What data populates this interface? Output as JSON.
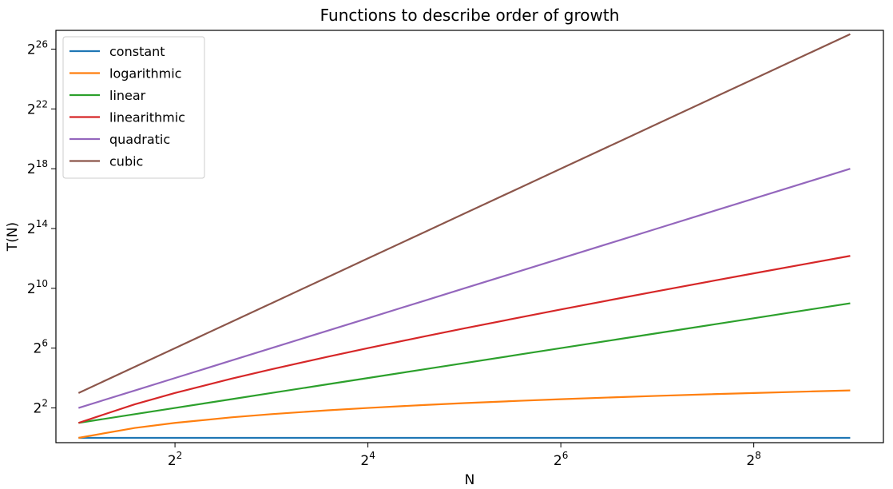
{
  "chart_data": {
    "type": "line",
    "title": "Functions to describe order of growth",
    "xlabel": "N",
    "ylabel": "T(N)",
    "xscale": "log2",
    "yscale": "log2",
    "xlim": [
      1.7,
      650
    ],
    "ylim": [
      0.8,
      160000000
    ],
    "grid": false,
    "legend_position": "top-left",
    "x_ticks": [
      {
        "base": "2",
        "exp": "2",
        "value": 4
      },
      {
        "base": "2",
        "exp": "4",
        "value": 16
      },
      {
        "base": "2",
        "exp": "6",
        "value": 64
      },
      {
        "base": "2",
        "exp": "8",
        "value": 256
      }
    ],
    "y_ticks": [
      {
        "base": "2",
        "exp": "2",
        "value": 4
      },
      {
        "base": "2",
        "exp": "6",
        "value": 64
      },
      {
        "base": "2",
        "exp": "10",
        "value": 1024
      },
      {
        "base": "2",
        "exp": "14",
        "value": 16384
      },
      {
        "base": "2",
        "exp": "18",
        "value": 262144
      },
      {
        "base": "2",
        "exp": "22",
        "value": 4194304
      },
      {
        "base": "2",
        "exp": "26",
        "value": 67108864
      }
    ],
    "x": [
      2,
      3,
      4,
      6,
      8,
      12,
      16,
      24,
      32,
      48,
      64,
      96,
      128,
      192,
      256,
      384,
      512
    ],
    "series": [
      {
        "name": "constant",
        "color": "#1f77b4",
        "values": [
          1,
          1,
          1,
          1,
          1,
          1,
          1,
          1,
          1,
          1,
          1,
          1,
          1,
          1,
          1,
          1,
          1
        ]
      },
      {
        "name": "logarithmic",
        "color": "#ff7f0e",
        "values": [
          1,
          1.585,
          2,
          2.585,
          3,
          3.585,
          4,
          4.585,
          5,
          5.585,
          6,
          6.585,
          7,
          7.585,
          8,
          8.585,
          9
        ]
      },
      {
        "name": "linear",
        "color": "#2ca02c",
        "values": [
          2,
          3,
          4,
          6,
          8,
          12,
          16,
          24,
          32,
          48,
          64,
          96,
          128,
          192,
          256,
          384,
          512
        ]
      },
      {
        "name": "linearithmic",
        "color": "#d62728",
        "values": [
          2,
          4.75,
          8,
          15.5,
          24,
          43,
          64,
          110,
          160,
          268,
          384,
          632,
          896,
          1456,
          2048,
          3297,
          4608
        ]
      },
      {
        "name": "quadratic",
        "color": "#9467bd",
        "values": [
          4,
          9,
          16,
          36,
          64,
          144,
          256,
          576,
          1024,
          2304,
          4096,
          9216,
          16384,
          36864,
          65536,
          147456,
          262144
        ]
      },
      {
        "name": "cubic",
        "color": "#8c564b",
        "values": [
          8,
          27,
          64,
          216,
          512,
          1728,
          4096,
          13824,
          32768,
          110592,
          262144,
          884736,
          2097152,
          7077888,
          16777216,
          56623104,
          134217728
        ]
      }
    ]
  }
}
